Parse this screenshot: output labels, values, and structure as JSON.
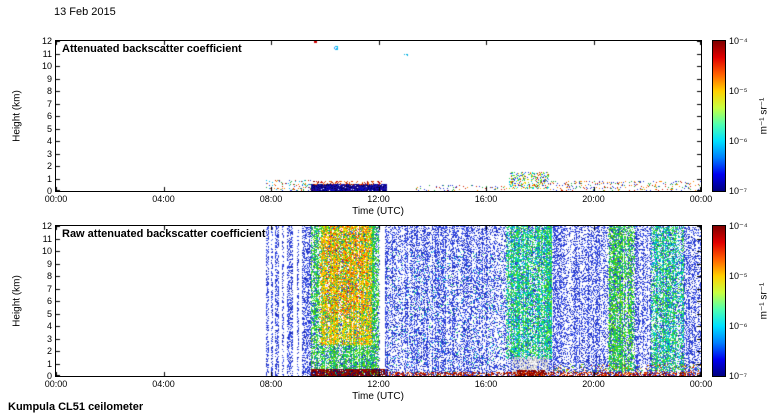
{
  "figure": {
    "date": "13 Feb 2015",
    "footer": "Kumpula CL51 ceilometer"
  },
  "chart_data": [
    {
      "type": "heatmap",
      "title": "Attenuated backscatter coefficient",
      "xlabel": "Time (UTC)",
      "ylabel": "Height (km)",
      "x_tick_labels": [
        "00:00",
        "04:00",
        "08:00",
        "12:00",
        "16:00",
        "20:00",
        "00:00"
      ],
      "y_tick_labels": [
        "12",
        "11",
        "10",
        "9",
        "8",
        "7",
        "6",
        "5",
        "4",
        "3",
        "2",
        "1",
        "0"
      ],
      "x_range_hours": [
        0,
        24
      ],
      "y_range_km": [
        0,
        12
      ],
      "colorbar": {
        "tick_labels": [
          "10⁻⁴",
          "10⁻⁵",
          "10⁻⁶",
          "10⁻⁷"
        ],
        "unit": "m⁻¹ sr⁻¹",
        "scale": "log",
        "min": "1e-7",
        "max": "1e-4",
        "colormap": "jet",
        "gradient": [
          "#800000",
          "#e00000",
          "#ff6000",
          "#ffd000",
          "#c8ff40",
          "#50ffb0",
          "#00e0ff",
          "#0080ff",
          "#0000f0",
          "#000080"
        ]
      },
      "regions": [
        {
          "t": [
            7.8,
            9.5
          ],
          "h": [
            0,
            0.9
          ],
          "density": 0.15,
          "colors": [
            "#2a3cd8",
            "#cc2200",
            "#22aa44",
            "#00bbee",
            "#ff8800"
          ],
          "note": "sparse low-level specks"
        },
        {
          "t": [
            9.5,
            12.3
          ],
          "h": [
            0,
            0.55
          ],
          "density": 0.95,
          "colors": [
            "#000082",
            "#1a1aa8",
            "#000060",
            "#2d0a8e",
            "#0a0ac0"
          ],
          "approx_value": "1e-7 to 1e-6.5",
          "note": "dense dark low layer"
        },
        {
          "t": [
            9.55,
            12.25
          ],
          "h": [
            0.45,
            0.78
          ],
          "density": 0.35,
          "colors": [
            "#c00000",
            "#e04000",
            "#800000",
            "#ff7700"
          ],
          "approx_value": "~1e-4",
          "note": "strong scatter at layer top"
        },
        {
          "t": [
            13.4,
            16.8
          ],
          "h": [
            0,
            0.5
          ],
          "density": 0.13,
          "colors": [
            "#cc2200",
            "#2a3cd8",
            "#ff8800",
            "#22aa44"
          ],
          "note": "intermittent surface specks"
        },
        {
          "t": [
            16.85,
            18.35
          ],
          "h": [
            0.2,
            1.5
          ],
          "density": 0.4,
          "colors": [
            "#22cc55",
            "#00ccee",
            "#99dd00",
            "#ffcc00",
            "#2a3cd8",
            "#cc2200"
          ],
          "approx_value": "~1e-5.5",
          "note": "low-level cluster"
        },
        {
          "t": [
            18.4,
            24.0
          ],
          "h": [
            0,
            0.8
          ],
          "density": 0.15,
          "colors": [
            "#cc2200",
            "#2a3cd8",
            "#22aa44",
            "#ff8800"
          ],
          "note": "intermittent surface specks"
        },
        {
          "t": [
            9.6,
            9.72
          ],
          "h": [
            11.85,
            12.0
          ],
          "density": 0.9,
          "colors": [
            "#cc0000"
          ],
          "note": "isolated high dot"
        },
        {
          "t": [
            10.35,
            10.5
          ],
          "h": [
            11.3,
            11.6
          ],
          "density": 0.6,
          "colors": [
            "#00c8e8",
            "#20a0ff"
          ],
          "note": "isolated high dot"
        },
        {
          "t": [
            12.95,
            13.1
          ],
          "h": [
            10.8,
            11.05
          ],
          "density": 0.5,
          "colors": [
            "#00b0e0"
          ],
          "note": "isolated high dot"
        }
      ]
    },
    {
      "type": "heatmap",
      "title": "Raw attenuated backscatter coefficient",
      "xlabel": "Time (UTC)",
      "ylabel": "Height (km)",
      "x_tick_labels": [
        "00:00",
        "04:00",
        "08:00",
        "12:00",
        "16:00",
        "20:00",
        "00:00"
      ],
      "y_tick_labels": [
        "12",
        "11",
        "10",
        "9",
        "8",
        "7",
        "6",
        "5",
        "4",
        "3",
        "2",
        "1",
        "0"
      ],
      "x_range_hours": [
        0,
        24
      ],
      "y_range_km": [
        0,
        12
      ],
      "colorbar": {
        "tick_labels": [
          "10⁻⁴",
          "10⁻⁵",
          "10⁻⁶",
          "10⁻⁷"
        ],
        "unit": "m⁻¹ sr⁻¹",
        "scale": "log",
        "min": "1e-7",
        "max": "1e-4",
        "colormap": "jet",
        "gradient": [
          "#800000",
          "#e00000",
          "#ff6000",
          "#ffd000",
          "#c8ff40",
          "#50ffb0",
          "#00e0ff",
          "#0080ff",
          "#0000f0",
          "#000080"
        ]
      },
      "regions": [
        {
          "t": [
            7.8,
            7.92
          ],
          "h": [
            0,
            12
          ],
          "density": 0.5,
          "colors": [
            "#2a3cd8",
            "#3550e8",
            "#1b2bb0",
            "#4f66f2",
            "#2233cc"
          ],
          "note": "noise column"
        },
        {
          "t": [
            8.0,
            8.08
          ],
          "h": [
            0,
            12
          ],
          "density": 0.45,
          "colors": [
            "#2a3cd8",
            "#3550e8",
            "#1b2bb0",
            "#4f66f2",
            "#2233cc"
          ],
          "note": "noise column"
        },
        {
          "t": [
            8.15,
            8.3
          ],
          "h": [
            0,
            12
          ],
          "density": 0.5,
          "colors": [
            "#2a3cd8",
            "#3550e8",
            "#1b2bb0",
            "#4f66f2",
            "#2233cc"
          ],
          "note": "noise column"
        },
        {
          "t": [
            8.42,
            8.5
          ],
          "h": [
            0,
            12
          ],
          "density": 0.4,
          "colors": [
            "#2a3cd8",
            "#3550e8",
            "#1b2bb0",
            "#4f66f2",
            "#2233cc"
          ],
          "note": "noise column"
        },
        {
          "t": [
            8.6,
            8.82
          ],
          "h": [
            0,
            12
          ],
          "density": 0.5,
          "colors": [
            "#2a3cd8",
            "#3550e8",
            "#1b2bb0",
            "#4f66f2",
            "#2233cc"
          ],
          "note": "noise column"
        },
        {
          "t": [
            8.95,
            9.05
          ],
          "h": [
            0,
            12
          ],
          "density": 0.45,
          "colors": [
            "#2a3cd8",
            "#3550e8",
            "#1b2bb0",
            "#4f66f2",
            "#2233cc"
          ],
          "note": "noise column"
        },
        {
          "t": [
            9.15,
            9.42
          ],
          "h": [
            0,
            12
          ],
          "density": 0.5,
          "colors": [
            "#2a3cd8",
            "#3550e8",
            "#1b2bb0",
            "#4f66f2",
            "#2233cc"
          ],
          "note": "noise column"
        },
        {
          "t": [
            9.42,
            12.05
          ],
          "h": [
            0,
            12
          ],
          "density": 0.38,
          "colors": [
            "#2a3cd8",
            "#3550e8",
            "#1b2bb0",
            "#4f66f2",
            "#2233cc"
          ],
          "col_mod": true,
          "approx_value": "~1e-6.5",
          "note": "background noise"
        },
        {
          "t": [
            9.5,
            12.0
          ],
          "h": [
            0,
            12
          ],
          "density": 0.55,
          "colors": [
            "#1fbf2f",
            "#3ddc20",
            "#00c060",
            "#7fe000",
            "#20c8a0"
          ],
          "col_mod": true,
          "approx_value": "~1e-6",
          "note": "elevated backscatter plume"
        },
        {
          "t": [
            9.8,
            11.75
          ],
          "h": [
            2.5,
            12
          ],
          "density": 0.5,
          "colors": [
            "#ffd800",
            "#ffaa00",
            "#f0e800",
            "#ff8800"
          ],
          "col_mod": true,
          "approx_value": "~1e-5",
          "note": "strong plume core"
        },
        {
          "t": [
            10.0,
            11.6
          ],
          "h": [
            5,
            12
          ],
          "density": 0.13,
          "colors": [
            "#ff5500",
            "#ee2200"
          ],
          "approx_value": "~1e-4.5",
          "note": "strongest scatter flecks"
        },
        {
          "t": [
            9.5,
            12.35
          ],
          "h": [
            0,
            0.6
          ],
          "density": 0.92,
          "colors": [
            "#6a0000",
            "#8c0f00",
            "#a40000",
            "#140a66"
          ],
          "approx_value": "~1e-4",
          "note": "saturated surface layer"
        },
        {
          "t": [
            12.25,
            24.0
          ],
          "h": [
            0,
            12
          ],
          "density": 0.42,
          "colors": [
            "#2a3cd8",
            "#3550e8",
            "#1b2bb0",
            "#4f66f2",
            "#2233cc"
          ],
          "col_mod": true,
          "approx_value": "~1e-6.5",
          "note": "background noise"
        },
        {
          "t": [
            12.3,
            16.7
          ],
          "h": [
            0,
            10
          ],
          "density": 0.03,
          "colors": [
            "#00cfe8",
            "#20d070"
          ],
          "note": "occasional cyan flecks"
        },
        {
          "t": [
            16.75,
            18.45
          ],
          "h": [
            1.4,
            12
          ],
          "density": 0.5,
          "colors": [
            "#20cc44",
            "#00d890",
            "#55e020",
            "#00c8e0"
          ],
          "col_mod": true,
          "approx_value": "~1e-6",
          "note": "moderate backscatter band"
        },
        {
          "t": [
            16.95,
            18.35
          ],
          "h": [
            0,
            1.5
          ],
          "density": 0.6,
          "colors": [
            "#c8c8c8",
            "#d8d8d8",
            "#bababa",
            "#e4e4e4"
          ],
          "note": "attenuated grey zone near surface"
        },
        {
          "t": [
            17.15,
            18.2
          ],
          "h": [
            0,
            0.5
          ],
          "density": 0.85,
          "colors": [
            "#8a0000",
            "#a81000",
            "#6a0000"
          ],
          "approx_value": "~1e-4",
          "note": "dense surface layer"
        },
        {
          "t": [
            20.55,
            21.55
          ],
          "h": [
            0.4,
            12
          ],
          "density": 0.45,
          "colors": [
            "#20cc44",
            "#3cd81e",
            "#00c878",
            "#80e000"
          ],
          "col_mod": true,
          "approx_value": "~1e-6",
          "note": "moderate backscatter band"
        },
        {
          "t": [
            22.15,
            23.35
          ],
          "h": [
            0.4,
            12
          ],
          "density": 0.45,
          "colors": [
            "#20cc44",
            "#00d0a0",
            "#55e020",
            "#00c8e0"
          ],
          "col_mod": true,
          "approx_value": "~1e-6",
          "note": "moderate backscatter band"
        },
        {
          "t": [
            12.4,
            24.0
          ],
          "h": [
            0,
            0.3
          ],
          "density": 0.5,
          "colors": [
            "#b00000",
            "#d03000",
            "#700000",
            "#ff6600"
          ],
          "approx_value": "~1e-4",
          "note": "surface return line"
        },
        {
          "t": [
            18.45,
            24.0
          ],
          "h": [
            0.25,
            1.0
          ],
          "density": 0.2,
          "colors": [
            "#28c040",
            "#70d818",
            "#e0a000",
            "#cc2200",
            "#2a3cd8"
          ],
          "note": "mixed low-level specks"
        }
      ]
    }
  ]
}
